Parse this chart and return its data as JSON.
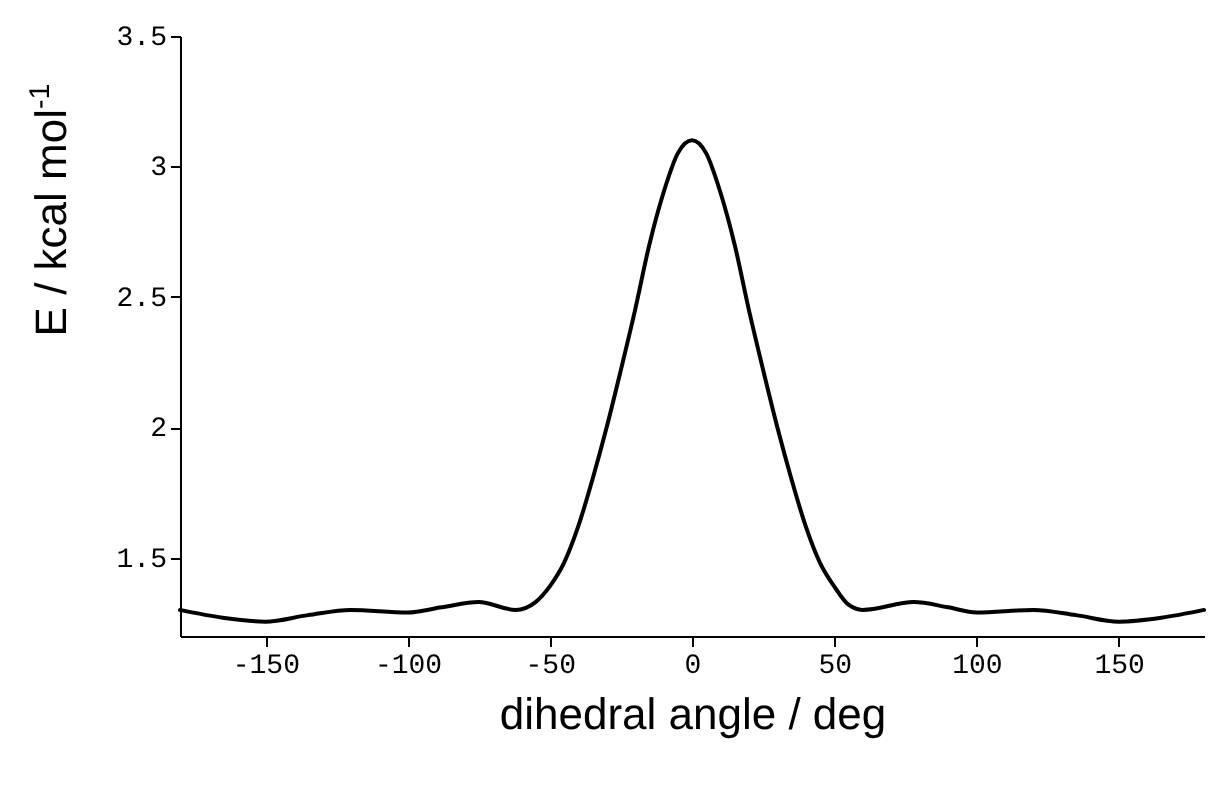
{
  "chart_data": {
    "type": "line",
    "xlabel": "dihedral angle / deg",
    "ylabel": "E / kcal mol$^{-1}$",
    "x": [
      -180,
      -165,
      -150,
      -135,
      -120,
      -100,
      -88,
      -75,
      -62,
      -55,
      -50,
      -45,
      -40,
      -35,
      -30,
      -25,
      -20,
      -15,
      -10,
      -5,
      0,
      5,
      10,
      15,
      20,
      25,
      30,
      35,
      40,
      45,
      50,
      55,
      60,
      78,
      90,
      100,
      120,
      135,
      150,
      165,
      180
    ],
    "series": [
      {
        "color": "#000000",
        "values": [
          1.3,
          1.27,
          1.255,
          1.28,
          1.3,
          1.29,
          1.31,
          1.33,
          1.3,
          1.33,
          1.39,
          1.48,
          1.62,
          1.8,
          2.0,
          2.22,
          2.45,
          2.7,
          2.9,
          3.05,
          3.1,
          3.05,
          2.9,
          2.7,
          2.45,
          2.22,
          2.0,
          1.8,
          1.62,
          1.48,
          1.39,
          1.32,
          1.3,
          1.33,
          1.31,
          1.29,
          1.3,
          1.28,
          1.255,
          1.27,
          1.3
        ]
      }
    ],
    "xlim": [
      -180,
      180
    ],
    "ylim": [
      1.2,
      3.5
    ],
    "xticks": [
      -150,
      -100,
      -50,
      0,
      50,
      100,
      150
    ],
    "yticks": [
      1.5,
      2,
      2.5,
      3,
      3.5
    ],
    "grid": false,
    "marker": "none",
    "line_style": "solid"
  }
}
